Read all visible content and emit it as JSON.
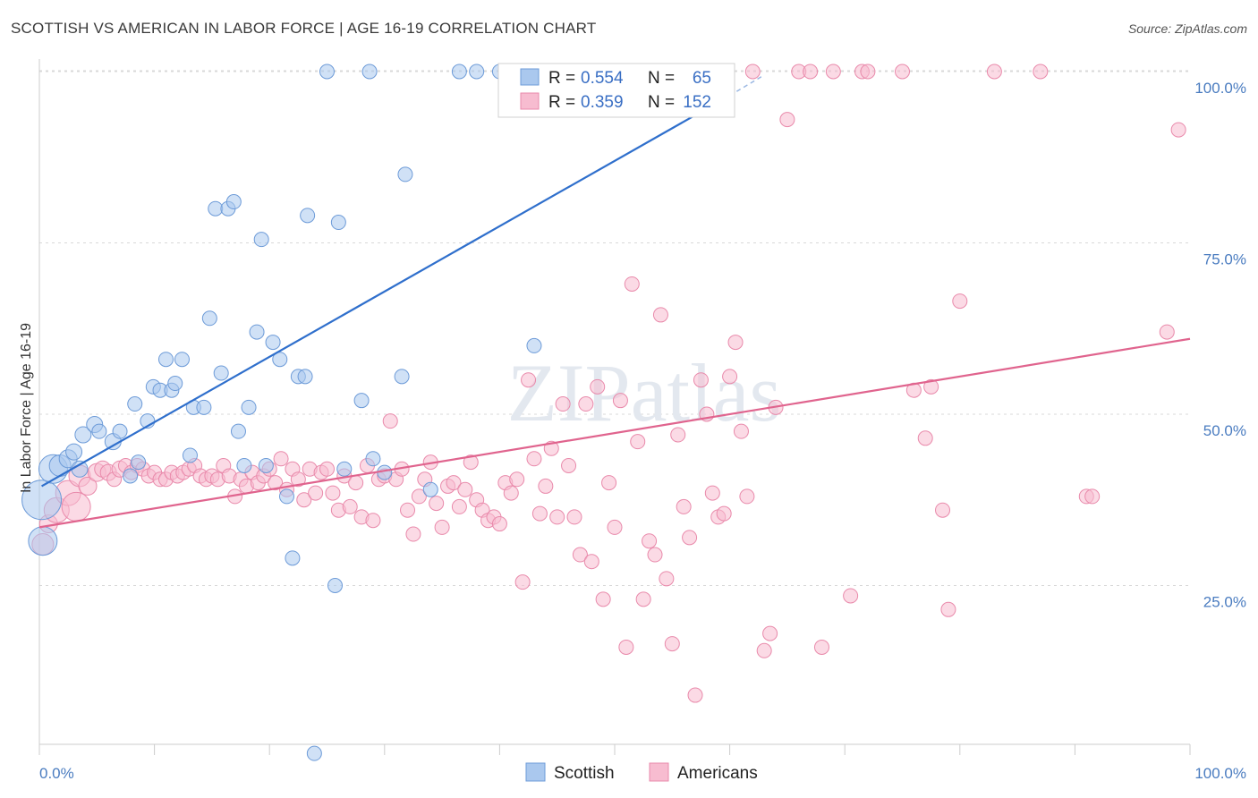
{
  "title": "SCOTTISH VS AMERICAN IN LABOR FORCE | AGE 16-19 CORRELATION CHART",
  "source": "Source: ZipAtlas.com",
  "watermark": "ZIPatlas",
  "colors": {
    "scottish_fill": "#aac8ee",
    "scottish_stroke": "#6d9bd8",
    "scottish_line": "#2f6fcc",
    "american_fill": "#f7bcd0",
    "american_stroke": "#e98aab",
    "american_line": "#e0648e",
    "grid": "#d8d8d8",
    "tick_label": "#4a7cc0"
  },
  "chart_data": {
    "type": "scatter",
    "title": "SCOTTISH VS AMERICAN IN LABOR FORCE | AGE 16-19 CORRELATION CHART",
    "xlabel": "",
    "ylabel": "In Labor Force | Age 16-19",
    "xlim": [
      0,
      100
    ],
    "ylim": [
      0,
      104
    ],
    "x_tick_labels": [
      "0.0%",
      "100.0%"
    ],
    "y_ticks": [
      25,
      50,
      75,
      100
    ],
    "y_tick_labels": [
      "25.0%",
      "50.0%",
      "75.0%",
      "100.0%"
    ],
    "grid": true,
    "legend_position": "top-center",
    "legend": [
      {
        "r_label": "R = ",
        "r_value": "0.554",
        "n_label": "N = ",
        "n_value": "65"
      },
      {
        "r_label": "R = ",
        "r_value": "0.359",
        "n_label": "N = ",
        "n_value": "152"
      }
    ],
    "bottom_legend": [
      "Scottish",
      "Americans"
    ],
    "series": [
      {
        "name": "Scottish",
        "trend": {
          "x0": 0.2,
          "y0": 39.5,
          "x1": 60,
          "y1": 96.5,
          "dash_to_x": 63,
          "dash_to_y": 99.5
        },
        "points": [
          [
            0.2,
            37.5,
            22
          ],
          [
            0.3,
            31.5,
            16
          ],
          [
            1.2,
            42.0,
            16
          ],
          [
            1.8,
            42.5,
            12
          ],
          [
            2.5,
            43.5,
            10
          ],
          [
            3.0,
            44.5,
            9
          ],
          [
            3.5,
            42.0,
            9
          ],
          [
            3.8,
            47.0,
            9
          ],
          [
            4.8,
            48.5,
            9
          ],
          [
            5.2,
            47.5,
            8
          ],
          [
            6.4,
            46.0,
            9
          ],
          [
            7.0,
            47.5,
            8
          ],
          [
            7.9,
            41.0,
            8
          ],
          [
            8.3,
            51.5,
            8
          ],
          [
            8.6,
            43.0,
            8
          ],
          [
            9.4,
            49.0,
            8
          ],
          [
            9.9,
            54.0,
            8
          ],
          [
            10.5,
            53.5,
            8
          ],
          [
            11.0,
            58.0,
            8
          ],
          [
            11.5,
            53.5,
            8
          ],
          [
            11.8,
            54.5,
            8
          ],
          [
            12.4,
            58.0,
            8
          ],
          [
            13.1,
            44.0,
            8
          ],
          [
            13.4,
            51.0,
            8
          ],
          [
            14.3,
            51.0,
            8
          ],
          [
            14.8,
            64.0,
            8
          ],
          [
            15.3,
            80.0,
            8
          ],
          [
            15.8,
            56.0,
            8
          ],
          [
            16.4,
            80.0,
            8
          ],
          [
            16.9,
            81.0,
            8
          ],
          [
            17.3,
            47.5,
            8
          ],
          [
            17.8,
            42.5,
            8
          ],
          [
            18.2,
            51.0,
            8
          ],
          [
            18.9,
            62.0,
            8
          ],
          [
            19.3,
            75.5,
            8
          ],
          [
            19.7,
            42.5,
            8
          ],
          [
            20.3,
            60.5,
            8
          ],
          [
            20.9,
            58.0,
            8
          ],
          [
            21.5,
            38.0,
            8
          ],
          [
            22.0,
            29.0,
            8
          ],
          [
            22.5,
            55.5,
            8
          ],
          [
            23.1,
            55.5,
            8
          ],
          [
            23.3,
            79.0,
            8
          ],
          [
            23.9,
            0.5,
            8
          ],
          [
            25.0,
            100,
            8
          ],
          [
            25.7,
            25.0,
            8
          ],
          [
            26.0,
            78.0,
            8
          ],
          [
            26.5,
            42.0,
            8
          ],
          [
            28.0,
            52.0,
            8
          ],
          [
            28.7,
            100,
            8
          ],
          [
            29.0,
            43.5,
            8
          ],
          [
            30.0,
            41.5,
            8
          ],
          [
            31.5,
            55.5,
            8
          ],
          [
            31.8,
            85.0,
            8
          ],
          [
            34.0,
            39.0,
            8
          ],
          [
            36.5,
            100,
            8
          ],
          [
            38.0,
            100,
            8
          ],
          [
            40.0,
            100,
            8
          ],
          [
            43.0,
            60.0,
            8
          ]
        ]
      },
      {
        "name": "Americans",
        "trend": {
          "x0": 0,
          "y0": 33.5,
          "x1": 100,
          "y1": 61.0
        },
        "points": [
          [
            0.3,
            31.0,
            12
          ],
          [
            0.8,
            34.0,
            10
          ],
          [
            1.5,
            36.0,
            14
          ],
          [
            2.5,
            38.5,
            14
          ],
          [
            3.2,
            36.5,
            16
          ],
          [
            3.5,
            41.0,
            12
          ],
          [
            4.2,
            39.5,
            10
          ],
          [
            5.0,
            41.5,
            10
          ],
          [
            5.5,
            42.0,
            9
          ],
          [
            6.0,
            41.5,
            9
          ],
          [
            6.5,
            40.5,
            8
          ],
          [
            7.0,
            42.0,
            9
          ],
          [
            7.5,
            42.5,
            8
          ],
          [
            8.0,
            41.5,
            8
          ],
          [
            8.5,
            42.5,
            8
          ],
          [
            9.0,
            42.0,
            8
          ],
          [
            9.5,
            41.0,
            8
          ],
          [
            10.0,
            41.5,
            8
          ],
          [
            10.5,
            40.5,
            8
          ],
          [
            11.0,
            40.5,
            8
          ],
          [
            11.5,
            41.5,
            8
          ],
          [
            12.0,
            41.0,
            8
          ],
          [
            12.5,
            41.5,
            8
          ],
          [
            13.0,
            42.0,
            8
          ],
          [
            13.5,
            42.5,
            8
          ],
          [
            14.0,
            41.0,
            8
          ],
          [
            14.5,
            40.5,
            8
          ],
          [
            15.0,
            41.0,
            8
          ],
          [
            15.5,
            40.5,
            8
          ],
          [
            16.0,
            42.5,
            8
          ],
          [
            16.5,
            41.0,
            8
          ],
          [
            17.0,
            38.0,
            8
          ],
          [
            17.5,
            40.5,
            8
          ],
          [
            18.0,
            39.5,
            8
          ],
          [
            18.5,
            41.5,
            8
          ],
          [
            19.0,
            40.0,
            8
          ],
          [
            19.5,
            41.0,
            8
          ],
          [
            20.0,
            42.0,
            8
          ],
          [
            20.5,
            40.0,
            8
          ],
          [
            21.0,
            43.5,
            8
          ],
          [
            21.5,
            39.0,
            8
          ],
          [
            22.0,
            42.0,
            8
          ],
          [
            22.5,
            40.5,
            8
          ],
          [
            23.0,
            37.5,
            8
          ],
          [
            23.5,
            42.0,
            8
          ],
          [
            24.0,
            38.5,
            8
          ],
          [
            24.5,
            41.5,
            8
          ],
          [
            25.0,
            42.0,
            8
          ],
          [
            25.5,
            38.5,
            8
          ],
          [
            26.0,
            36.0,
            8
          ],
          [
            26.5,
            41.0,
            8
          ],
          [
            27.0,
            36.5,
            8
          ],
          [
            27.5,
            40.0,
            8
          ],
          [
            28.0,
            35.0,
            8
          ],
          [
            28.5,
            42.5,
            8
          ],
          [
            29.0,
            34.5,
            8
          ],
          [
            29.5,
            40.5,
            8
          ],
          [
            30.0,
            41.0,
            8
          ],
          [
            30.5,
            49.0,
            8
          ],
          [
            31.0,
            40.5,
            8
          ],
          [
            31.5,
            42.0,
            8
          ],
          [
            32.0,
            36.0,
            8
          ],
          [
            32.5,
            32.5,
            8
          ],
          [
            33.0,
            38.0,
            8
          ],
          [
            33.5,
            40.5,
            8
          ],
          [
            34.0,
            43.0,
            8
          ],
          [
            34.5,
            37.0,
            8
          ],
          [
            35.0,
            33.5,
            8
          ],
          [
            35.5,
            39.5,
            8
          ],
          [
            36.0,
            40.0,
            8
          ],
          [
            36.5,
            36.5,
            8
          ],
          [
            37.0,
            39.0,
            8
          ],
          [
            37.5,
            43.0,
            8
          ],
          [
            38.0,
            37.5,
            8
          ],
          [
            38.5,
            36.0,
            8
          ],
          [
            39.0,
            34.5,
            8
          ],
          [
            39.5,
            35.0,
            8
          ],
          [
            40.0,
            34.0,
            8
          ],
          [
            40.5,
            40.0,
            8
          ],
          [
            41.0,
            38.5,
            8
          ],
          [
            41.5,
            40.5,
            8
          ],
          [
            42.0,
            25.5,
            8
          ],
          [
            42.5,
            55.0,
            8
          ],
          [
            43.0,
            43.5,
            8
          ],
          [
            43.5,
            35.5,
            8
          ],
          [
            44.0,
            39.5,
            8
          ],
          [
            44.5,
            45.0,
            8
          ],
          [
            45.0,
            35.0,
            8
          ],
          [
            45.5,
            51.5,
            8
          ],
          [
            46.0,
            42.5,
            8
          ],
          [
            46.5,
            35.0,
            8
          ],
          [
            47.0,
            29.5,
            8
          ],
          [
            47.5,
            51.5,
            8
          ],
          [
            48.0,
            28.5,
            8
          ],
          [
            48.5,
            54.0,
            8
          ],
          [
            49.0,
            23.0,
            8
          ],
          [
            49.5,
            40.0,
            8
          ],
          [
            50.0,
            33.5,
            8
          ],
          [
            50.5,
            52.0,
            8
          ],
          [
            51.0,
            16.0,
            8
          ],
          [
            51.5,
            69.0,
            8
          ],
          [
            52.0,
            46.0,
            8
          ],
          [
            52.5,
            23.0,
            8
          ],
          [
            53.0,
            31.5,
            8
          ],
          [
            53.5,
            29.5,
            8
          ],
          [
            54.0,
            64.5,
            8
          ],
          [
            54.5,
            26.0,
            8
          ],
          [
            55.0,
            16.5,
            8
          ],
          [
            55.5,
            47.0,
            8
          ],
          [
            56.0,
            36.5,
            8
          ],
          [
            56.5,
            32.0,
            8
          ],
          [
            57.0,
            9.0,
            8
          ],
          [
            57.5,
            55.0,
            8
          ],
          [
            58.0,
            50.0,
            8
          ],
          [
            58.5,
            38.5,
            8
          ],
          [
            59.0,
            35.0,
            8
          ],
          [
            59.5,
            35.5,
            8
          ],
          [
            60.0,
            55.5,
            8
          ],
          [
            60.5,
            60.5,
            8
          ],
          [
            61.0,
            47.5,
            8
          ],
          [
            61.5,
            38.0,
            8
          ],
          [
            62.0,
            100,
            8
          ],
          [
            63.0,
            15.5,
            8
          ],
          [
            63.5,
            18.0,
            8
          ],
          [
            64.0,
            51.0,
            8
          ],
          [
            65.0,
            93.0,
            8
          ],
          [
            66.0,
            100,
            8
          ],
          [
            67.0,
            100,
            8
          ],
          [
            68.0,
            16.0,
            8
          ],
          [
            69.0,
            100,
            8
          ],
          [
            70.5,
            23.5,
            8
          ],
          [
            71.5,
            100,
            8
          ],
          [
            72.0,
            100,
            8
          ],
          [
            75.0,
            100,
            8
          ],
          [
            76.0,
            53.5,
            8
          ],
          [
            77.0,
            46.5,
            8
          ],
          [
            77.5,
            54.0,
            8
          ],
          [
            78.5,
            36.0,
            8
          ],
          [
            79.0,
            21.5,
            8
          ],
          [
            80.0,
            66.5,
            8
          ],
          [
            83.0,
            100,
            8
          ],
          [
            87.0,
            100,
            8
          ],
          [
            91.0,
            38.0,
            8
          ],
          [
            91.5,
            38.0,
            8
          ],
          [
            98.0,
            62.0,
            8
          ],
          [
            99.0,
            91.5,
            8
          ]
        ]
      }
    ]
  }
}
